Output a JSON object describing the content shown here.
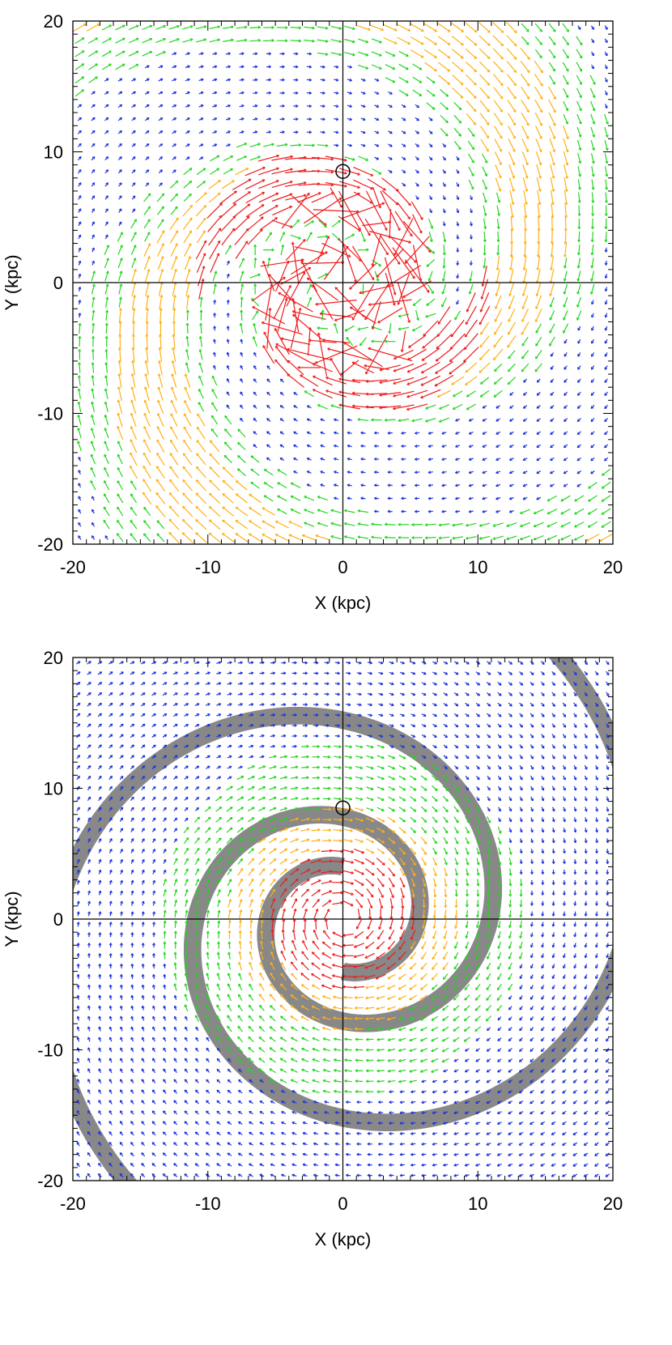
{
  "chart_data": [
    {
      "type": "vector-field",
      "xlabel": "X (kpc)",
      "ylabel": "Y (kpc)",
      "xlim": [
        -20,
        20
      ],
      "ylim": [
        -20,
        20
      ],
      "xticks": [
        -20,
        -10,
        0,
        10,
        20
      ],
      "yticks": [
        -20,
        -10,
        0,
        10,
        20
      ],
      "crosshair": {
        "x": 0,
        "y": 0
      },
      "sun_marker": {
        "x": 0,
        "y": 8.5
      },
      "grid_spacing": 1,
      "arrow_colors": [
        "#1c33dd",
        "#22d61e",
        "#ffb015",
        "#ee1c1c"
      ],
      "spiral_arms": null
    },
    {
      "type": "vector-field",
      "xlabel": "X (kpc)",
      "ylabel": "Y (kpc)",
      "xlim": [
        -20,
        20
      ],
      "ylim": [
        -20,
        20
      ],
      "xticks": [
        -20,
        -10,
        0,
        10,
        20
      ],
      "yticks": [
        -20,
        -10,
        0,
        10,
        20
      ],
      "crosshair": {
        "x": 0,
        "y": 0
      },
      "sun_marker": {
        "x": 0,
        "y": 8.5
      },
      "grid_spacing": 0.8,
      "arrow_colors": [
        "#1c33dd",
        "#22d61e",
        "#ffb015",
        "#ee1c1c"
      ],
      "spiral_arms": {
        "count": 2,
        "pitch_angle_deg": 12,
        "start_radius": 4,
        "end_radius": 30,
        "width_kpc": 1.3,
        "color": "#888888"
      }
    }
  ]
}
